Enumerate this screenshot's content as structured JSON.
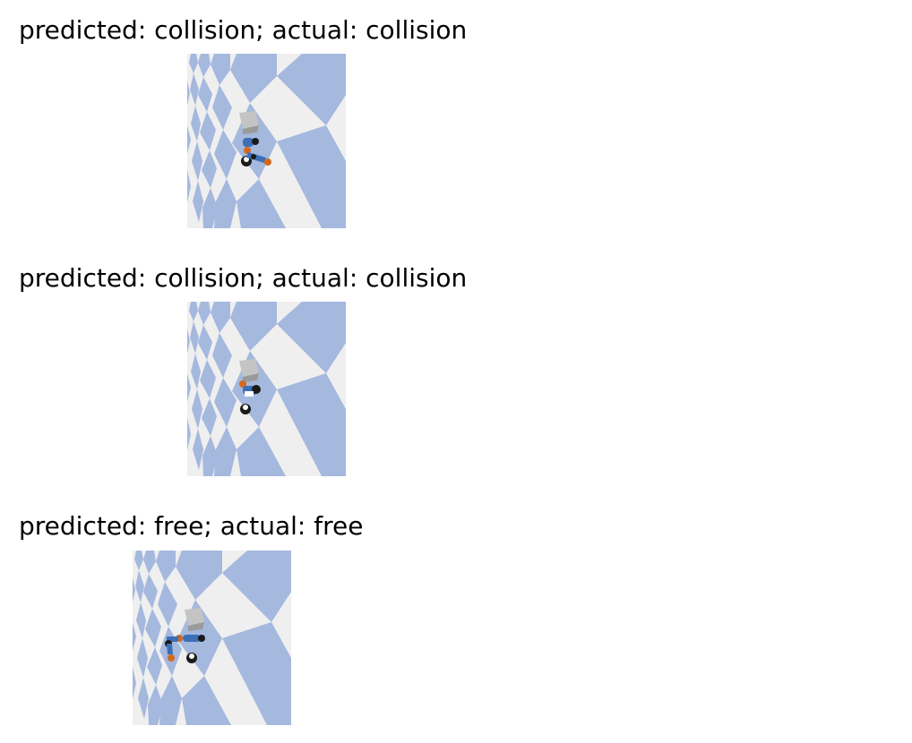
{
  "panels": [
    {
      "title": "predicted: collision; actual: collision",
      "predicted": "collision",
      "actual": "collision",
      "robot_pose": "arm-extended-right"
    },
    {
      "title": "predicted: collision; actual: collision",
      "predicted": "collision",
      "actual": "collision",
      "robot_pose": "arm-folded"
    },
    {
      "title": "predicted: free; actual: free",
      "predicted": "free",
      "actual": "free",
      "robot_pose": "arm-extended-left"
    }
  ],
  "colors": {
    "floor_light": "#efefef",
    "floor_tile": "#a5b8de",
    "obstacle": "#c8c8c8",
    "robot_link": "#3d6fb5",
    "robot_joint": "#d2691e",
    "robot_base": "#1a1a1a"
  }
}
